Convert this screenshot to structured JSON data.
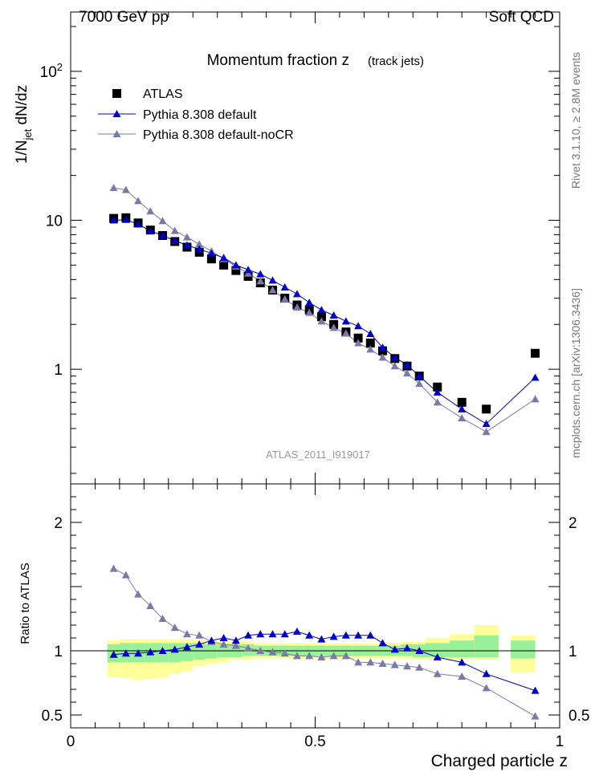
{
  "header": {
    "left": "7000 GeV pp",
    "right": "Soft QCD"
  },
  "side_text": {
    "rivet": "Rivet 3.1.10, ≥ 2.8M events",
    "mcplots": "mcplots.cern.ch [arXiv:1306.3436]"
  },
  "chart_data": {
    "type": "scatter",
    "title": "Momentum fraction z",
    "subtitle": "(track jets)",
    "analysis_label": "ATLAS_2011_I919017",
    "xlabel": "Charged particle z",
    "ylabel_main": "1/N_jet dN/dz",
    "ylabel_ratio": "Ratio to ATLAS",
    "x_range": [
      0,
      1
    ],
    "x_ticks": [
      "0",
      "0.5",
      "1"
    ],
    "main_yscale": "log",
    "main_ylim": [
      0.17,
      250
    ],
    "main_yticks": [
      "1",
      "10",
      "10^2"
    ],
    "ratio_ylim": [
      0.4,
      2.3
    ],
    "ratio_yticks": [
      "0.5",
      "1",
      "2"
    ],
    "legend_position": "top-left",
    "colors": {
      "atlas": "#000000",
      "default": "#0000cc",
      "nocr": "#7a7aa8",
      "band_inner": "#98f098",
      "band_outer": "#ffff99"
    },
    "x": [
      0.088,
      0.113,
      0.138,
      0.163,
      0.188,
      0.213,
      0.238,
      0.263,
      0.288,
      0.313,
      0.338,
      0.363,
      0.388,
      0.413,
      0.438,
      0.463,
      0.488,
      0.513,
      0.538,
      0.563,
      0.588,
      0.613,
      0.638,
      0.663,
      0.688,
      0.713,
      0.75,
      0.8,
      0.85,
      0.95
    ],
    "x_bins": [
      [
        0.075,
        0.1
      ],
      [
        0.1,
        0.125
      ],
      [
        0.125,
        0.15
      ],
      [
        0.15,
        0.175
      ],
      [
        0.175,
        0.2
      ],
      [
        0.2,
        0.225
      ],
      [
        0.225,
        0.25
      ],
      [
        0.25,
        0.275
      ],
      [
        0.275,
        0.3
      ],
      [
        0.3,
        0.325
      ],
      [
        0.325,
        0.35
      ],
      [
        0.35,
        0.375
      ],
      [
        0.375,
        0.4
      ],
      [
        0.4,
        0.425
      ],
      [
        0.425,
        0.45
      ],
      [
        0.45,
        0.475
      ],
      [
        0.475,
        0.5
      ],
      [
        0.5,
        0.525
      ],
      [
        0.525,
        0.55
      ],
      [
        0.55,
        0.575
      ],
      [
        0.575,
        0.6
      ],
      [
        0.6,
        0.625
      ],
      [
        0.625,
        0.65
      ],
      [
        0.65,
        0.675
      ],
      [
        0.675,
        0.7
      ],
      [
        0.7,
        0.725
      ],
      [
        0.725,
        0.775
      ],
      [
        0.775,
        0.825
      ],
      [
        0.825,
        0.875
      ],
      [
        0.9,
        0.95
      ]
    ],
    "series": [
      {
        "name": "ATLAS",
        "marker": "square",
        "values": [
          10.3,
          10.4,
          9.6,
          8.6,
          7.9,
          7.2,
          6.6,
          6.1,
          5.5,
          5.0,
          4.6,
          4.2,
          3.8,
          3.4,
          3.0,
          2.7,
          2.5,
          2.25,
          2.0,
          1.78,
          1.62,
          1.5,
          1.33,
          1.18,
          1.05,
          0.9,
          0.76,
          0.6,
          0.54,
          1.28
        ],
        "band_inner": [
          [
            0.91,
            1.05
          ],
          [
            0.91,
            1.06
          ],
          [
            0.91,
            1.06
          ],
          [
            0.91,
            1.06
          ],
          [
            0.91,
            1.06
          ],
          [
            0.91,
            1.06
          ],
          [
            0.92,
            1.06
          ],
          [
            0.93,
            1.06
          ],
          [
            0.94,
            1.05
          ],
          [
            0.95,
            1.05
          ],
          [
            0.95,
            1.05
          ],
          [
            0.96,
            1.05
          ],
          [
            0.96,
            1.04
          ],
          [
            0.96,
            1.04
          ],
          [
            0.96,
            1.04
          ],
          [
            0.96,
            1.04
          ],
          [
            0.96,
            1.04
          ],
          [
            0.96,
            1.04
          ],
          [
            0.96,
            1.04
          ],
          [
            0.96,
            1.04
          ],
          [
            0.96,
            1.04
          ],
          [
            0.96,
            1.04
          ],
          [
            0.96,
            1.04
          ],
          [
            0.96,
            1.04
          ],
          [
            0.96,
            1.05
          ],
          [
            0.95,
            1.05
          ],
          [
            0.95,
            1.06
          ],
          [
            0.95,
            1.08
          ],
          [
            0.95,
            1.12
          ],
          [
            0.94,
            1.08
          ]
        ],
        "band_outer": [
          [
            0.8,
            1.08
          ],
          [
            0.79,
            1.09
          ],
          [
            0.77,
            1.09
          ],
          [
            0.78,
            1.09
          ],
          [
            0.79,
            1.09
          ],
          [
            0.82,
            1.09
          ],
          [
            0.84,
            1.09
          ],
          [
            0.88,
            1.08
          ],
          [
            0.9,
            1.08
          ],
          [
            0.91,
            1.07
          ],
          [
            0.93,
            1.07
          ],
          [
            0.93,
            1.07
          ],
          [
            0.94,
            1.06
          ],
          [
            0.94,
            1.06
          ],
          [
            0.94,
            1.06
          ],
          [
            0.94,
            1.06
          ],
          [
            0.94,
            1.06
          ],
          [
            0.94,
            1.06
          ],
          [
            0.94,
            1.06
          ],
          [
            0.94,
            1.06
          ],
          [
            0.94,
            1.06
          ],
          [
            0.94,
            1.06
          ],
          [
            0.94,
            1.06
          ],
          [
            0.94,
            1.06
          ],
          [
            0.94,
            1.07
          ],
          [
            0.93,
            1.07
          ],
          [
            0.93,
            1.1
          ],
          [
            0.93,
            1.13
          ],
          [
            0.93,
            1.2
          ],
          [
            0.83,
            1.12
          ]
        ]
      },
      {
        "name": "Pythia 8.308 default",
        "marker": "triangle",
        "values": [
          10.0,
          10.1,
          9.4,
          8.5,
          7.9,
          7.3,
          6.8,
          6.4,
          6.0,
          5.6,
          5.0,
          4.65,
          4.35,
          3.95,
          3.55,
          3.2,
          2.8,
          2.5,
          2.3,
          2.1,
          1.95,
          1.73,
          1.4,
          1.2,
          1.07,
          0.9,
          0.7,
          0.54,
          0.43,
          0.88
        ],
        "ratio": [
          0.97,
          0.98,
          0.98,
          0.99,
          1.0,
          1.01,
          1.03,
          1.05,
          1.08,
          1.1,
          1.08,
          1.12,
          1.13,
          1.13,
          1.13,
          1.15,
          1.12,
          1.09,
          1.11,
          1.12,
          1.12,
          1.12,
          1.06,
          1.01,
          1.02,
          1.0,
          0.95,
          0.91,
          0.82,
          0.69
        ]
      },
      {
        "name": "Pythia 8.308 default-noCR",
        "marker": "triangle",
        "values": [
          16.5,
          16.0,
          13.5,
          11.5,
          9.9,
          8.5,
          7.7,
          6.9,
          6.2,
          5.5,
          4.9,
          4.4,
          3.9,
          3.4,
          2.95,
          2.6,
          2.4,
          2.1,
          1.9,
          1.74,
          1.5,
          1.36,
          1.2,
          1.05,
          0.94,
          0.8,
          0.6,
          0.47,
          0.38,
          0.63
        ],
        "ratio": [
          1.64,
          1.59,
          1.44,
          1.35,
          1.25,
          1.18,
          1.13,
          1.12,
          1.07,
          1.05,
          1.04,
          1.02,
          1.0,
          0.99,
          0.98,
          0.96,
          0.96,
          0.95,
          0.96,
          0.96,
          0.91,
          0.91,
          0.9,
          0.89,
          0.88,
          0.87,
          0.82,
          0.8,
          0.71,
          0.49
        ]
      }
    ]
  }
}
